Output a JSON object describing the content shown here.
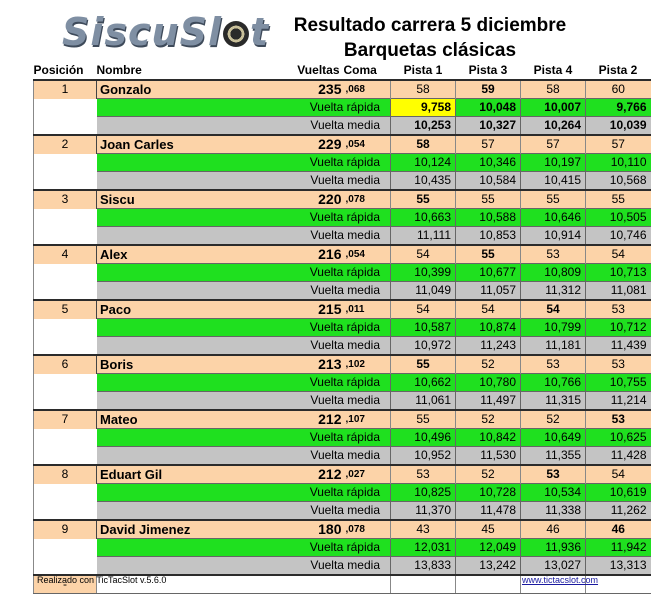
{
  "logo": "SiscuSl",
  "logo_end": "t",
  "title_line1": "Resultado carrera 5 diciembre",
  "title_line2": "Barquetas clásicas",
  "headers": {
    "position": "Posición",
    "name": "Nombre",
    "laps": "Vueltas",
    "coma": "Coma",
    "lanes": [
      "Pista 1",
      "Pista 3",
      "Pista 4",
      "Pista 2"
    ]
  },
  "labels": {
    "fast": "Vuelta rápida",
    "avg": "Vuelta media"
  },
  "rows": [
    {
      "pos": "1",
      "name": "Gonzalo",
      "laps": "235",
      "coma": ",068",
      "lanes": [
        "58",
        "59",
        "58",
        "60"
      ],
      "lanes_bold": [
        false,
        true,
        false,
        false
      ],
      "fast": [
        "9,758",
        "10,048",
        "10,007",
        "9,766"
      ],
      "fast_best": [
        true,
        false,
        false,
        false
      ],
      "fast_bold": [
        true,
        true,
        true,
        true
      ],
      "avg": [
        "10,253",
        "10,327",
        "10,264",
        "10,039"
      ],
      "avg_bold": [
        true,
        true,
        true,
        true
      ]
    },
    {
      "pos": "2",
      "name": "Joan Carles",
      "laps": "229",
      "coma": ",054",
      "lanes": [
        "58",
        "57",
        "57",
        "57"
      ],
      "lanes_bold": [
        true,
        false,
        false,
        false
      ],
      "fast": [
        "10,124",
        "10,346",
        "10,197",
        "10,110"
      ],
      "fast_best": [
        false,
        false,
        false,
        false
      ],
      "fast_bold": [
        false,
        false,
        false,
        false
      ],
      "avg": [
        "10,435",
        "10,584",
        "10,415",
        "10,568"
      ],
      "avg_bold": [
        false,
        false,
        false,
        false
      ]
    },
    {
      "pos": "3",
      "name": "Siscu",
      "laps": "220",
      "coma": ",078",
      "lanes": [
        "55",
        "55",
        "55",
        "55"
      ],
      "lanes_bold": [
        true,
        false,
        false,
        false
      ],
      "fast": [
        "10,663",
        "10,588",
        "10,646",
        "10,505"
      ],
      "fast_best": [
        false,
        false,
        false,
        false
      ],
      "fast_bold": [
        false,
        false,
        false,
        false
      ],
      "avg": [
        "11,111",
        "10,853",
        "10,914",
        "10,746"
      ],
      "avg_bold": [
        false,
        false,
        false,
        false
      ]
    },
    {
      "pos": "4",
      "name": "Alex",
      "laps": "216",
      "coma": ",054",
      "lanes": [
        "54",
        "55",
        "53",
        "54"
      ],
      "lanes_bold": [
        false,
        true,
        false,
        false
      ],
      "fast": [
        "10,399",
        "10,677",
        "10,809",
        "10,713"
      ],
      "fast_best": [
        false,
        false,
        false,
        false
      ],
      "fast_bold": [
        false,
        false,
        false,
        false
      ],
      "avg": [
        "11,049",
        "11,057",
        "11,312",
        "11,081"
      ],
      "avg_bold": [
        false,
        false,
        false,
        false
      ]
    },
    {
      "pos": "5",
      "name": "Paco",
      "laps": "215",
      "coma": ",011",
      "lanes": [
        "54",
        "54",
        "54",
        "53"
      ],
      "lanes_bold": [
        false,
        false,
        true,
        false
      ],
      "fast": [
        "10,587",
        "10,874",
        "10,799",
        "10,712"
      ],
      "fast_best": [
        false,
        false,
        false,
        false
      ],
      "fast_bold": [
        false,
        false,
        false,
        false
      ],
      "avg": [
        "10,972",
        "11,243",
        "11,181",
        "11,439"
      ],
      "avg_bold": [
        false,
        false,
        false,
        false
      ]
    },
    {
      "pos": "6",
      "name": "Boris",
      "laps": "213",
      "coma": ",102",
      "lanes": [
        "55",
        "52",
        "53",
        "53"
      ],
      "lanes_bold": [
        true,
        false,
        false,
        false
      ],
      "fast": [
        "10,662",
        "10,780",
        "10,766",
        "10,755"
      ],
      "fast_best": [
        false,
        false,
        false,
        false
      ],
      "fast_bold": [
        false,
        false,
        false,
        false
      ],
      "avg": [
        "11,061",
        "11,497",
        "11,315",
        "11,214"
      ],
      "avg_bold": [
        false,
        false,
        false,
        false
      ]
    },
    {
      "pos": "7",
      "name": "Mateo",
      "laps": "212",
      "coma": ",107",
      "lanes": [
        "55",
        "52",
        "52",
        "53"
      ],
      "lanes_bold": [
        false,
        false,
        false,
        true
      ],
      "fast": [
        "10,496",
        "10,842",
        "10,649",
        "10,625"
      ],
      "fast_best": [
        false,
        false,
        false,
        false
      ],
      "fast_bold": [
        false,
        false,
        false,
        false
      ],
      "avg": [
        "10,952",
        "11,530",
        "11,355",
        "11,428"
      ],
      "avg_bold": [
        false,
        false,
        false,
        false
      ]
    },
    {
      "pos": "8",
      "name": "Eduart Gil",
      "laps": "212",
      "coma": ",027",
      "lanes": [
        "53",
        "52",
        "53",
        "54"
      ],
      "lanes_bold": [
        false,
        false,
        true,
        false
      ],
      "fast": [
        "10,825",
        "10,728",
        "10,534",
        "10,619"
      ],
      "fast_best": [
        false,
        false,
        false,
        false
      ],
      "fast_bold": [
        false,
        false,
        false,
        false
      ],
      "avg": [
        "11,370",
        "11,478",
        "11,338",
        "11,262"
      ],
      "avg_bold": [
        false,
        false,
        false,
        false
      ]
    },
    {
      "pos": "9",
      "name": "David Jimenez",
      "laps": "180",
      "coma": ",078",
      "lanes": [
        "43",
        "45",
        "46",
        "46"
      ],
      "lanes_bold": [
        false,
        false,
        false,
        true
      ],
      "fast": [
        "12,031",
        "12,049",
        "11,936",
        "11,942"
      ],
      "fast_best": [
        false,
        false,
        false,
        false
      ],
      "fast_bold": [
        false,
        false,
        false,
        false
      ],
      "avg": [
        "13,833",
        "13,242",
        "13,027",
        "13,313"
      ],
      "avg_bold": [
        false,
        false,
        false,
        false
      ]
    }
  ],
  "empty_row_pos": "-",
  "footer_left": "Realizado con TicTacSlot v.5.6.0",
  "footer_right": "www.tictacslot.com",
  "colors": {
    "header_row": "#fcd3a8",
    "fast_lap": "#1fe01f",
    "best_lap": "#ffff00",
    "avg_lap": "#c4c4c4"
  }
}
